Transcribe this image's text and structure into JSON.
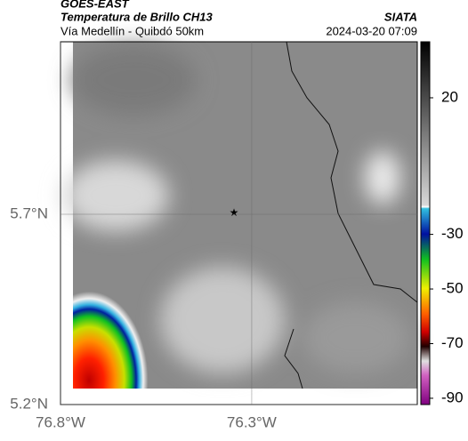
{
  "header": {
    "product": "GOES-EAST",
    "title": "Temperatura de Brillo CH13",
    "subtitle": "Vía Medellín - Quibdó 50km",
    "source": "SIATA",
    "datetime": "2024-03-20 07:09"
  },
  "map": {
    "xlim": [
      -76.8,
      -75.867
    ],
    "ylim": [
      5.2,
      6.153
    ],
    "xticks": [
      {
        "value": -76.8,
        "label": "76.8°W"
      },
      {
        "value": -76.3,
        "label": "76.3°W"
      }
    ],
    "yticks": [
      {
        "value": 5.2,
        "label": "5.2°N"
      },
      {
        "value": 5.7,
        "label": "5.7°N"
      }
    ]
  },
  "colorbar": {
    "lim": [
      -92.3,
      40.5
    ],
    "ticks": [
      20,
      -30,
      -50,
      -70,
      -90
    ]
  }
}
